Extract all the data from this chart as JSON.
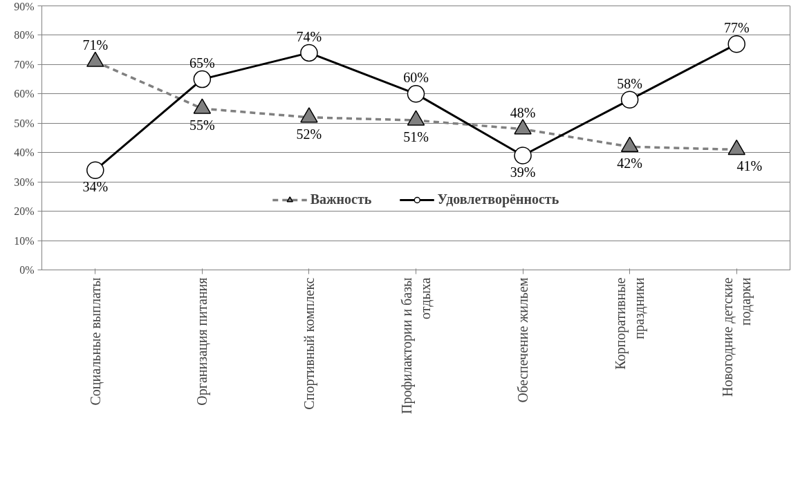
{
  "chart_data": {
    "type": "line",
    "categories": [
      "Социальные выплаты",
      "Организация питания",
      "Спортивный комплекс",
      "Профилактории и базы отдыха",
      "Обеспечение жильем",
      "Корпоративные праздники",
      "Новогодние детские подарки"
    ],
    "series": [
      {
        "name": "Важность",
        "color": "#808080",
        "values": [
          71,
          55,
          52,
          51,
          48,
          42,
          41
        ],
        "value_labels": [
          "71%",
          "55%",
          "52%",
          "51%",
          "48%",
          "42%",
          "41%"
        ],
        "marker": "triangle",
        "line_style": "dashed"
      },
      {
        "name": "Удовлетворённость",
        "color": "#000000",
        "values": [
          34,
          65,
          74,
          60,
          39,
          58,
          77
        ],
        "value_labels": [
          "34%",
          "65%",
          "74%",
          "60%",
          "39%",
          "58%",
          "77%"
        ],
        "marker": "circle",
        "line_style": "solid"
      }
    ],
    "ylim": [
      0,
      90
    ],
    "yticks": [
      {
        "value": 0,
        "label": "0%"
      },
      {
        "value": 10,
        "label": "10%"
      },
      {
        "value": 20,
        "label": "20%"
      },
      {
        "value": 30,
        "label": "30%"
      },
      {
        "value": 40,
        "label": "40%"
      },
      {
        "value": 50,
        "label": "50%"
      },
      {
        "value": 60,
        "label": "60%"
      },
      {
        "value": 70,
        "label": "70%"
      },
      {
        "value": 80,
        "label": "80%"
      },
      {
        "value": 90,
        "label": "90%"
      }
    ],
    "grid": "y",
    "legend": "bottom"
  }
}
